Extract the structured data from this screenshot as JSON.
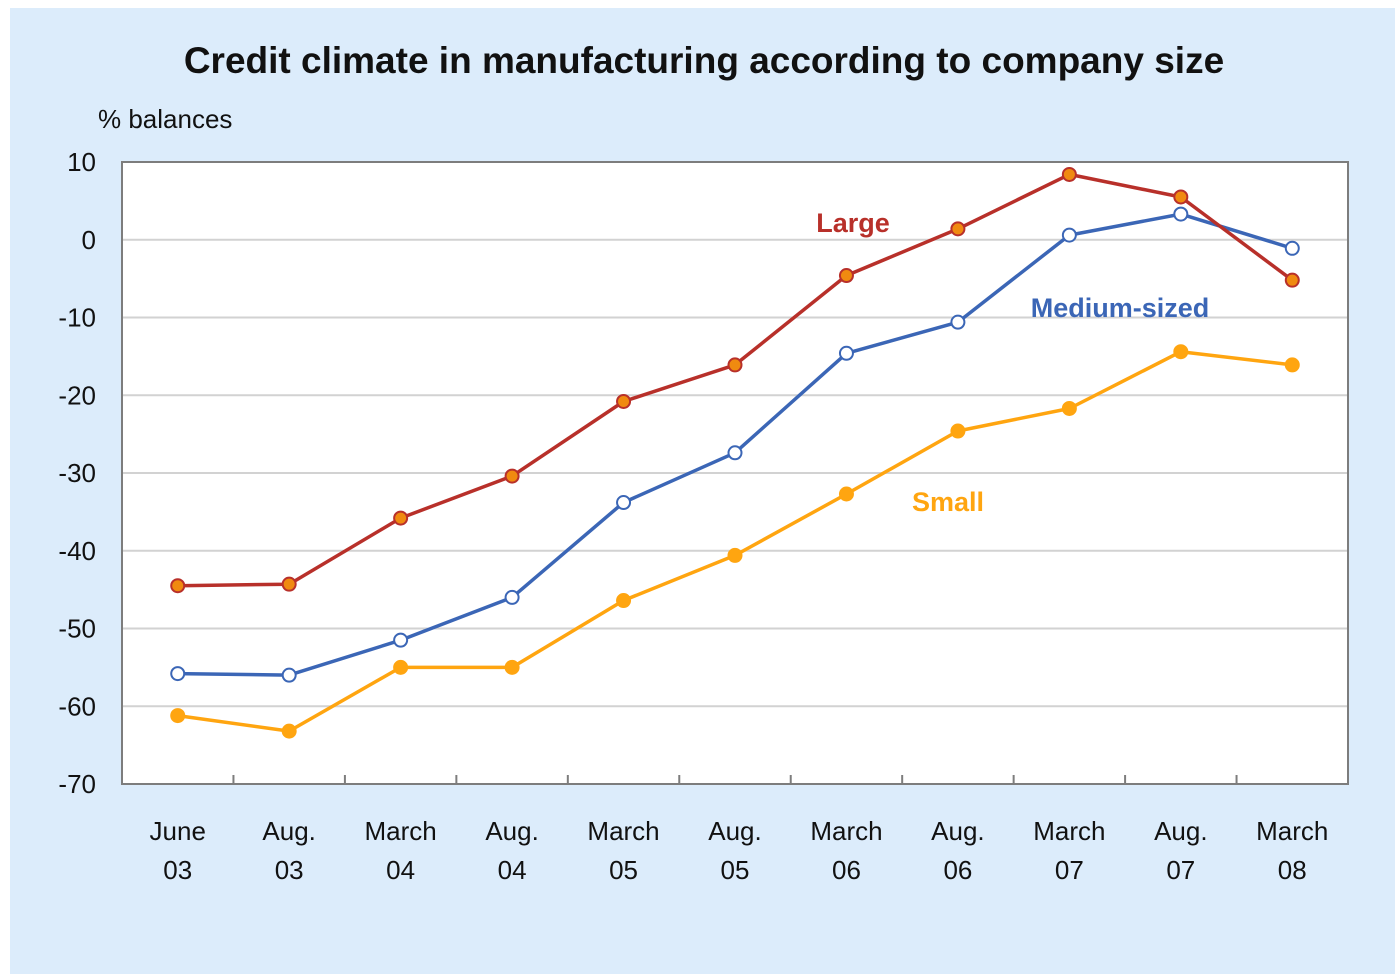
{
  "chart_data": {
    "type": "line",
    "title": "Credit climate in manufacturing according to company size",
    "ylabel": "% balances",
    "xlabel": "",
    "ylim": [
      -70,
      10
    ],
    "yticks": [
      10,
      0,
      -10,
      -20,
      -30,
      -40,
      -50,
      -60,
      -70
    ],
    "categories": [
      [
        "June",
        "03"
      ],
      [
        "Aug.",
        "03"
      ],
      [
        "March",
        "04"
      ],
      [
        "Aug.",
        "04"
      ],
      [
        "March",
        "05"
      ],
      [
        "Aug.",
        "05"
      ],
      [
        "March",
        "06"
      ],
      [
        "Aug.",
        "06"
      ],
      [
        "March",
        "07"
      ],
      [
        "Aug.",
        "07"
      ],
      [
        "March",
        "08"
      ]
    ],
    "grid": true,
    "legend": "inline labels",
    "series": [
      {
        "name": "Large",
        "color": "#b8302a",
        "marker": "#f08a10",
        "values": [
          -44.5,
          -44.3,
          -35.8,
          -30.4,
          -20.8,
          -16.1,
          -4.6,
          1.4,
          8.4,
          5.5,
          -5.2
        ]
      },
      {
        "name": "Medium-sized",
        "color": "#3b66b6",
        "marker": "#ffffff",
        "values": [
          -55.8,
          -56.0,
          -51.5,
          -46.0,
          -33.8,
          -27.4,
          -14.6,
          -10.6,
          0.6,
          3.3,
          -1.1
        ]
      },
      {
        "name": "Small",
        "color": "#ffa510",
        "marker": "#ffa510",
        "values": [
          -61.2,
          -63.2,
          -55.0,
          -55.0,
          -46.4,
          -40.6,
          -32.7,
          -24.6,
          -21.7,
          -14.4,
          -16.1
        ]
      }
    ]
  }
}
